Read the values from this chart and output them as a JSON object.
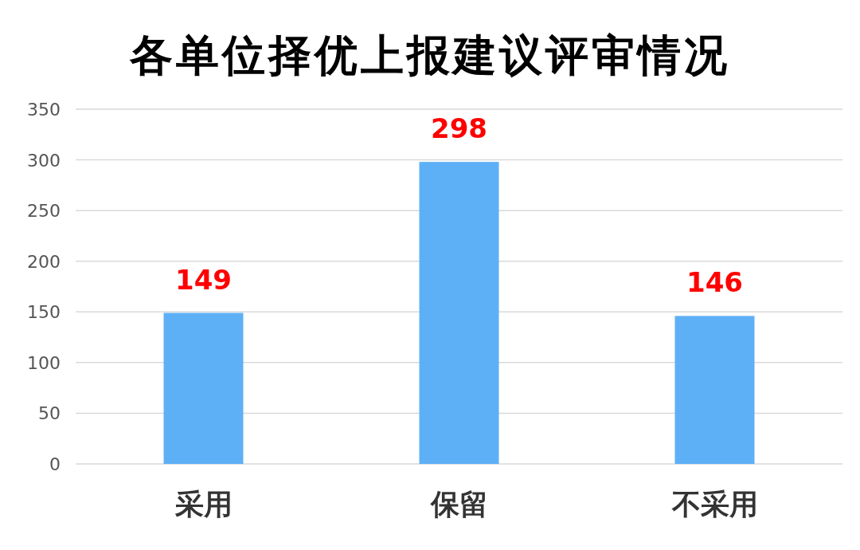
{
  "chart_data": {
    "type": "bar",
    "title": "各单位择优上报建议评审情况",
    "categories": [
      "采用",
      "保留",
      "不采用"
    ],
    "values": [
      149,
      298,
      146
    ],
    "color": "#5eb0f6",
    "ylim": [
      0,
      350
    ],
    "yticks": [
      0,
      50,
      100,
      150,
      200,
      250,
      300,
      350
    ],
    "grid": "y",
    "data_labels": true
  }
}
